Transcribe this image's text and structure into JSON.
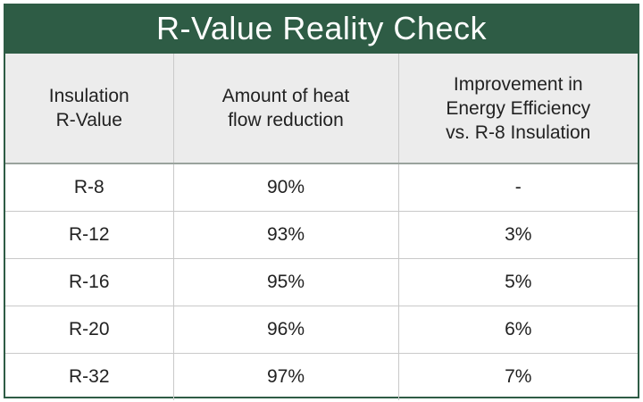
{
  "title": "R-Value Reality Check",
  "headers": [
    "Insulation\nR-Value",
    "Amount of heat\nflow reduction",
    "Improvement in\nEnergy Efficiency\nvs. R-8 Insulation"
  ],
  "rows": [
    [
      "R-8",
      "90%",
      "-"
    ],
    [
      "R-12",
      "93%",
      "3%"
    ],
    [
      "R-16",
      "95%",
      "5%"
    ],
    [
      "R-20",
      "96%",
      "6%"
    ],
    [
      "R-32",
      "97%",
      "7%"
    ]
  ],
  "colors": {
    "banner": "#2e5c45",
    "header_bg": "#ececec"
  }
}
